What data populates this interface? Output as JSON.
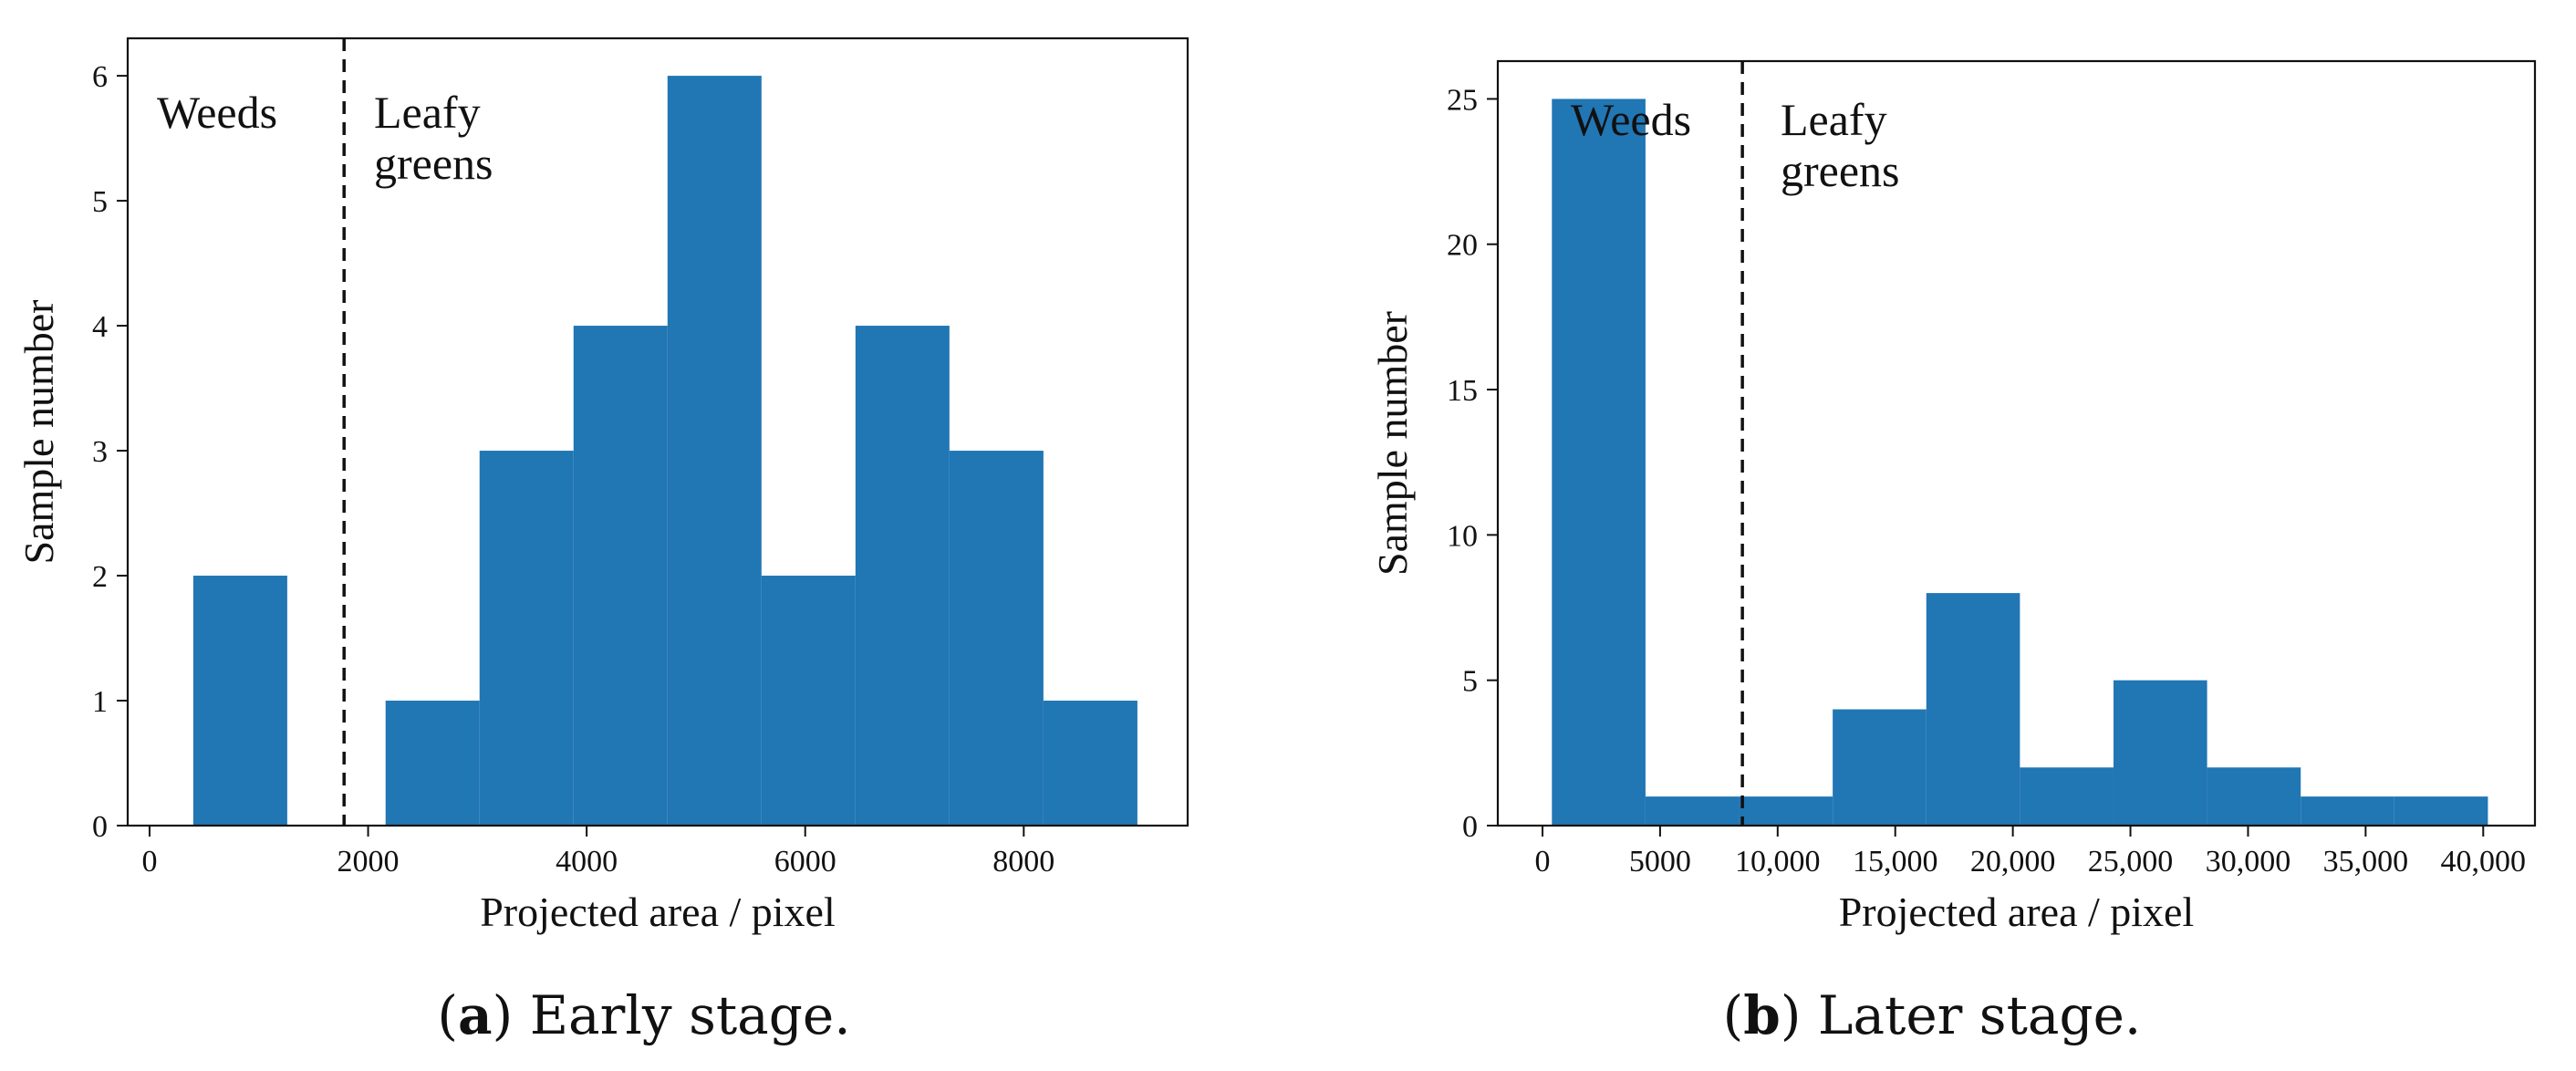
{
  "chart_data": [
    {
      "type": "bar",
      "subtype": "histogram",
      "caption_tag": "a",
      "caption_text": "Early stage.",
      "xlabel": "Projected area / pixel",
      "ylabel": "Sample number",
      "xlim": [
        -200,
        9500
      ],
      "ylim": [
        0,
        6.3
      ],
      "xticks": [
        0,
        2000,
        4000,
        6000,
        8000
      ],
      "xtick_labels": [
        "0",
        "2000",
        "4000",
        "6000",
        "8000"
      ],
      "yticks": [
        0,
        1,
        2,
        3,
        4,
        5,
        6
      ],
      "ytick_labels": [
        "0",
        "1",
        "2",
        "3",
        "4",
        "5",
        "6"
      ],
      "bar_color": "#2176b4",
      "bins": [
        {
          "start": 400,
          "end": 1260,
          "count": 2
        },
        {
          "start": 2160,
          "end": 3020,
          "count": 1
        },
        {
          "start": 3020,
          "end": 3880,
          "count": 3
        },
        {
          "start": 3880,
          "end": 4740,
          "count": 4
        },
        {
          "start": 4740,
          "end": 5600,
          "count": 6
        },
        {
          "start": 5600,
          "end": 6460,
          "count": 2
        },
        {
          "start": 6460,
          "end": 7320,
          "count": 4
        },
        {
          "start": 7320,
          "end": 8180,
          "count": 3
        },
        {
          "start": 8180,
          "end": 9040,
          "count": 1
        }
      ],
      "threshold_x": 1780,
      "annotations": {
        "left": [
          "Weeds"
        ],
        "right": [
          "Leafy",
          "greens"
        ]
      }
    },
    {
      "type": "bar",
      "subtype": "histogram",
      "caption_tag": "b",
      "caption_text": "Later stage.",
      "xlabel": "Projected area / pixel",
      "ylabel": "Sample number",
      "xlim": [
        -1900,
        42200
      ],
      "ylim": [
        0,
        26.3
      ],
      "xticks": [
        0,
        5000,
        10000,
        15000,
        20000,
        25000,
        30000,
        35000,
        40000
      ],
      "xtick_labels": [
        "0",
        "5000",
        "10,000",
        "15,000",
        "20,000",
        "25,000",
        "30,000",
        "35,000",
        "40,000"
      ],
      "yticks": [
        0,
        5,
        10,
        15,
        20,
        25
      ],
      "ytick_labels": [
        "0",
        "5",
        "10",
        "15",
        "20",
        "25"
      ],
      "bar_color": "#2176b4",
      "bins": [
        {
          "start": 400,
          "end": 4380,
          "count": 25
        },
        {
          "start": 4380,
          "end": 8360,
          "count": 1
        },
        {
          "start": 8360,
          "end": 12340,
          "count": 1
        },
        {
          "start": 12340,
          "end": 16320,
          "count": 4
        },
        {
          "start": 16320,
          "end": 20300,
          "count": 8
        },
        {
          "start": 20300,
          "end": 24280,
          "count": 2
        },
        {
          "start": 24280,
          "end": 28260,
          "count": 5
        },
        {
          "start": 28260,
          "end": 32240,
          "count": 2
        },
        {
          "start": 32240,
          "end": 36220,
          "count": 1
        },
        {
          "start": 36220,
          "end": 40200,
          "count": 1
        }
      ],
      "threshold_x": 8500,
      "annotations": {
        "left": [
          "Weeds"
        ],
        "right": [
          "Leafy",
          "greens"
        ]
      }
    }
  ]
}
